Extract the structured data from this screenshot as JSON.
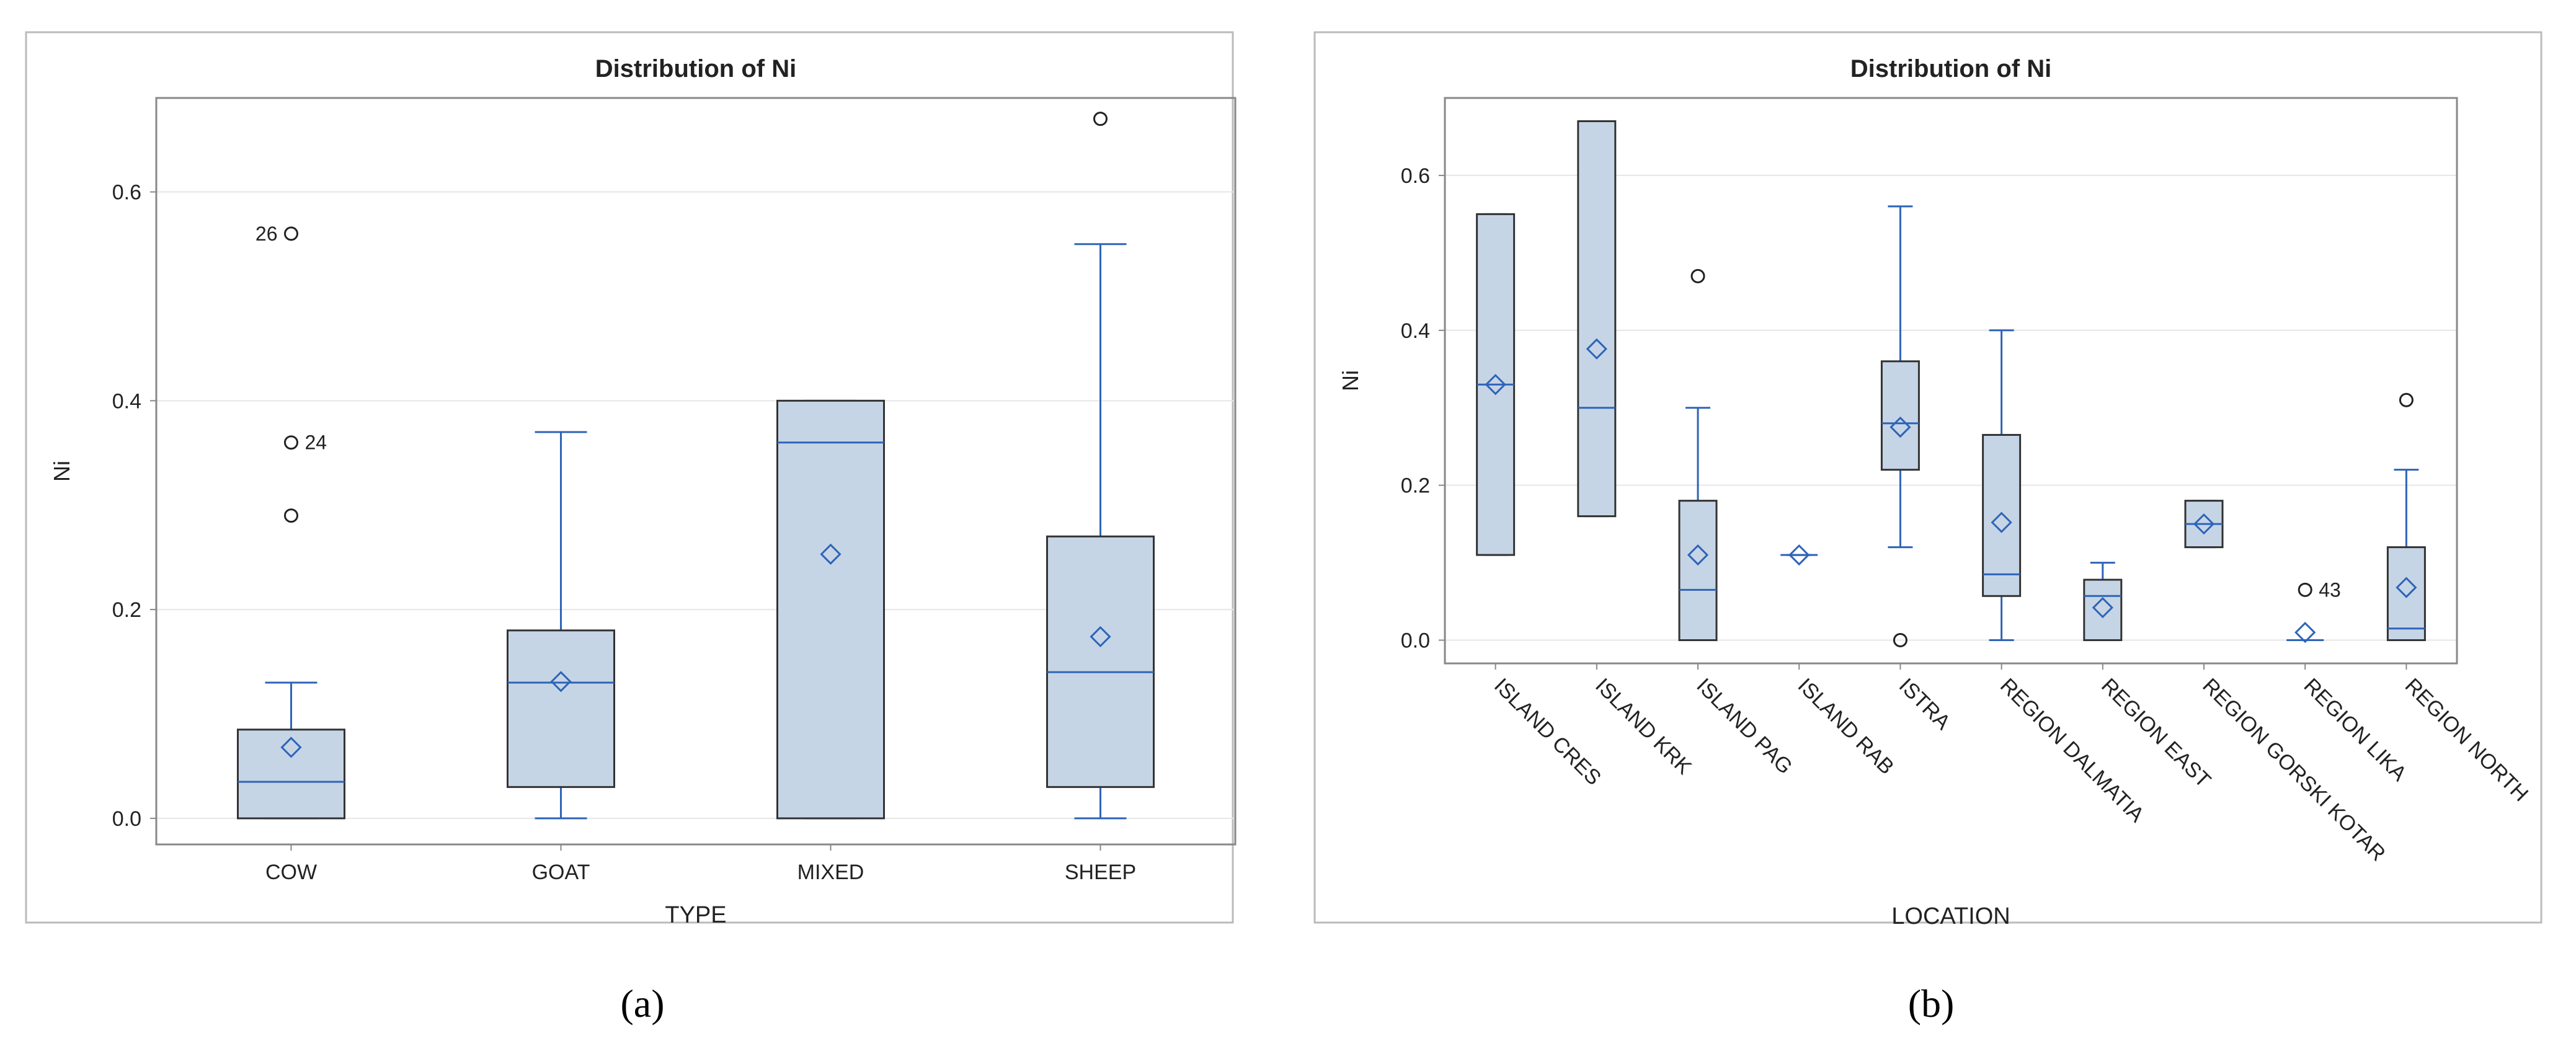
{
  "colors": {
    "box_fill": "#c6d5e6",
    "accent": "#2e64b8",
    "box_edge": "#333333",
    "frame": "#888888",
    "panel_border": "#bbbbbb",
    "grid": "#e6e6e6",
    "text": "#222222"
  },
  "chart_data": [
    {
      "type": "boxplot",
      "panel_label": "(a)",
      "title": "Distribution of Ni",
      "xlabel": "TYPE",
      "ylabel": "Ni",
      "ylim": [
        -0.025,
        0.69
      ],
      "yticks": [
        0.0,
        0.2,
        0.4,
        0.6
      ],
      "ytick_labels": [
        "0.0",
        "0.2",
        "0.4",
        "0.6"
      ],
      "grid": true,
      "categories": [
        "COW",
        "GOAT",
        "MIXED",
        "SHEEP"
      ],
      "boxes": [
        {
          "min": 0.0,
          "q1": 0.0,
          "median": 0.035,
          "q3": 0.085,
          "max": 0.13,
          "mean": 0.068
        },
        {
          "min": 0.0,
          "q1": 0.03,
          "median": 0.13,
          "q3": 0.18,
          "max": 0.37,
          "mean": 0.131
        },
        {
          "min": 0.0,
          "q1": 0.0,
          "median": 0.36,
          "q3": 0.4,
          "max": 0.4,
          "mean": 0.253
        },
        {
          "min": 0.0,
          "q1": 0.03,
          "median": 0.14,
          "q3": 0.27,
          "max": 0.55,
          "mean": 0.174
        }
      ],
      "outliers": [
        {
          "category": 0,
          "value": 0.56,
          "label": "26",
          "label_side": "left"
        },
        {
          "category": 0,
          "value": 0.36,
          "label": "24",
          "label_side": "right"
        },
        {
          "category": 0,
          "value": 0.29,
          "label": "",
          "label_side": "right"
        },
        {
          "category": 3,
          "value": 0.67,
          "label": "",
          "label_side": "right"
        }
      ]
    },
    {
      "type": "boxplot",
      "panel_label": "(b)",
      "title": "Distribution of Ni",
      "xlabel": "LOCATION",
      "ylabel": "Ni",
      "ylim": [
        -0.03,
        0.7
      ],
      "yticks": [
        0.0,
        0.2,
        0.4,
        0.6
      ],
      "ytick_labels": [
        "0.0",
        "0.2",
        "0.4",
        "0.6"
      ],
      "grid": true,
      "categories": [
        "ISLAND CRES",
        "ISLAND KRK",
        "ISLAND PAG",
        "ISLAND RAB",
        "ISTRA",
        "REGION DALMATIA",
        "REGION EAST",
        "REGION GORSKI KOTAR",
        "REGION LIKA",
        "REGION NORTH"
      ],
      "boxes": [
        {
          "min": 0.11,
          "q1": 0.11,
          "median": 0.33,
          "q3": 0.55,
          "max": 0.55,
          "mean": 0.33
        },
        {
          "min": 0.16,
          "q1": 0.16,
          "median": 0.3,
          "q3": 0.67,
          "max": 0.67,
          "mean": 0.376
        },
        {
          "min": 0.0,
          "q1": 0.0,
          "median": 0.065,
          "q3": 0.18,
          "max": 0.3,
          "mean": 0.11
        },
        {
          "min": 0.11,
          "q1": 0.11,
          "median": 0.11,
          "q3": 0.11,
          "max": 0.11,
          "mean": 0.11
        },
        {
          "min": 0.12,
          "q1": 0.22,
          "median": 0.28,
          "q3": 0.36,
          "max": 0.56,
          "mean": 0.275
        },
        {
          "min": 0.0,
          "q1": 0.057,
          "median": 0.085,
          "q3": 0.265,
          "max": 0.4,
          "mean": 0.152
        },
        {
          "min": 0.0,
          "q1": 0.0,
          "median": 0.057,
          "q3": 0.078,
          "max": 0.1,
          "mean": 0.042
        },
        {
          "min": 0.12,
          "q1": 0.12,
          "median": 0.15,
          "q3": 0.18,
          "max": 0.18,
          "mean": 0.15
        },
        {
          "min": 0.0,
          "q1": 0.0,
          "median": 0.0,
          "q3": 0.0,
          "max": 0.0,
          "mean": 0.01
        },
        {
          "min": 0.0,
          "q1": 0.0,
          "median": 0.015,
          "q3": 0.12,
          "max": 0.22,
          "mean": 0.068
        }
      ],
      "outliers": [
        {
          "category": 2,
          "value": 0.47,
          "label": "",
          "label_side": "right"
        },
        {
          "category": 4,
          "value": 0.0,
          "label": "",
          "label_side": "right"
        },
        {
          "category": 8,
          "value": 0.065,
          "label": "43",
          "label_side": "right"
        },
        {
          "category": 9,
          "value": 0.31,
          "label": "",
          "label_side": "right"
        }
      ]
    }
  ]
}
